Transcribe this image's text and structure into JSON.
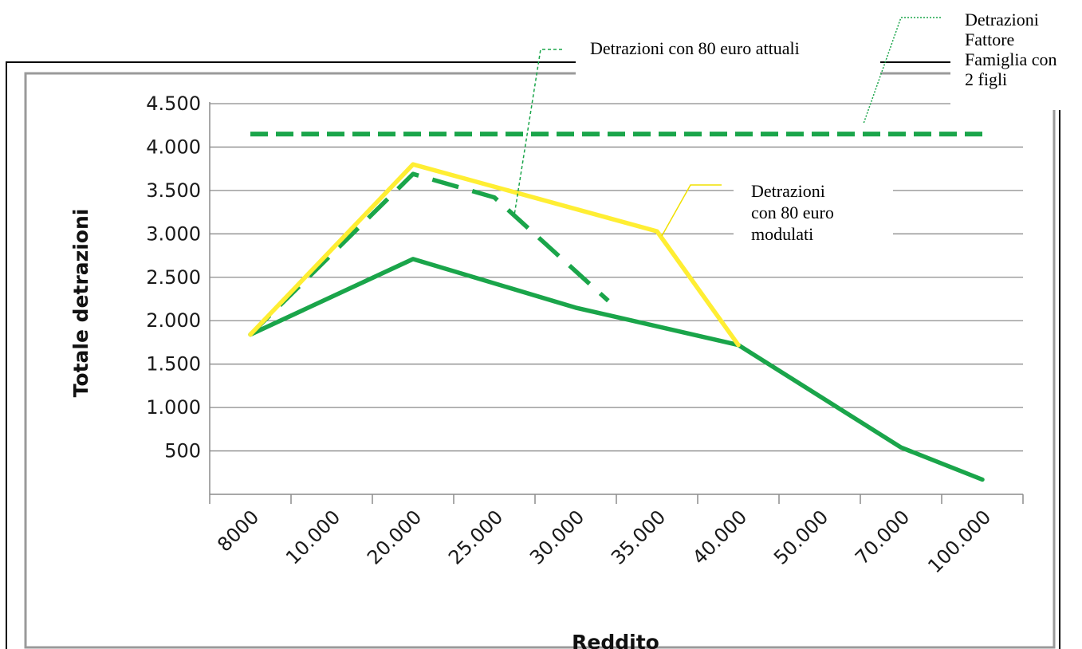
{
  "chart_data": {
    "type": "line",
    "title": "",
    "xlabel": "Reddito",
    "ylabel": "Totale detrazioni",
    "categories": [
      "8000",
      "10.000",
      "20.000",
      "25.000",
      "30.000",
      "35.000",
      "40.000",
      "50.000",
      "70.000",
      "100.000"
    ],
    "y_ticks": [
      "500",
      "1.000",
      "1.500",
      "2.000",
      "2.500",
      "3.000",
      "3.500",
      "4.000",
      "4.500"
    ],
    "ylim": [
      0,
      4500
    ],
    "grid": true,
    "legend": "none",
    "series": [
      {
        "name": "",
        "style": "solid",
        "color": "#1aa54a",
        "x": [
          0,
          2,
          4,
          6,
          8,
          9
        ],
        "y": [
          1840,
          2710,
          2150,
          1720,
          540,
          170
        ]
      },
      {
        "name": "Detrazioni con 80 euro attuali",
        "style": "dashed",
        "color": "#1aa54a",
        "x": [
          0,
          2,
          3,
          4.4
        ],
        "y": [
          1840,
          3690,
          3420,
          2230
        ]
      },
      {
        "name": "Detrazioni con 80 euro modulati",
        "style": "solid",
        "color": "#ffee33",
        "x": [
          0,
          2,
          5,
          6
        ],
        "y": [
          1840,
          3800,
          3030,
          1720
        ]
      },
      {
        "name": "Detrazioni Fattore Famiglia con 2 figli",
        "style": "dashed-thick",
        "color": "#1aa54a",
        "x": [
          0,
          9
        ],
        "y": [
          4150,
          4150
        ]
      }
    ],
    "annotations": [
      {
        "id": "attuali",
        "lines": [
          "Detrazioni con 80 euro attuali"
        ]
      },
      {
        "id": "famiglia",
        "lines": [
          "Detrazioni",
          "Fattore",
          "Famiglia con",
          "2 figli"
        ]
      },
      {
        "id": "modulati",
        "lines": [
          "Detrazioni",
          "con 80 euro",
          "modulati"
        ]
      }
    ]
  }
}
